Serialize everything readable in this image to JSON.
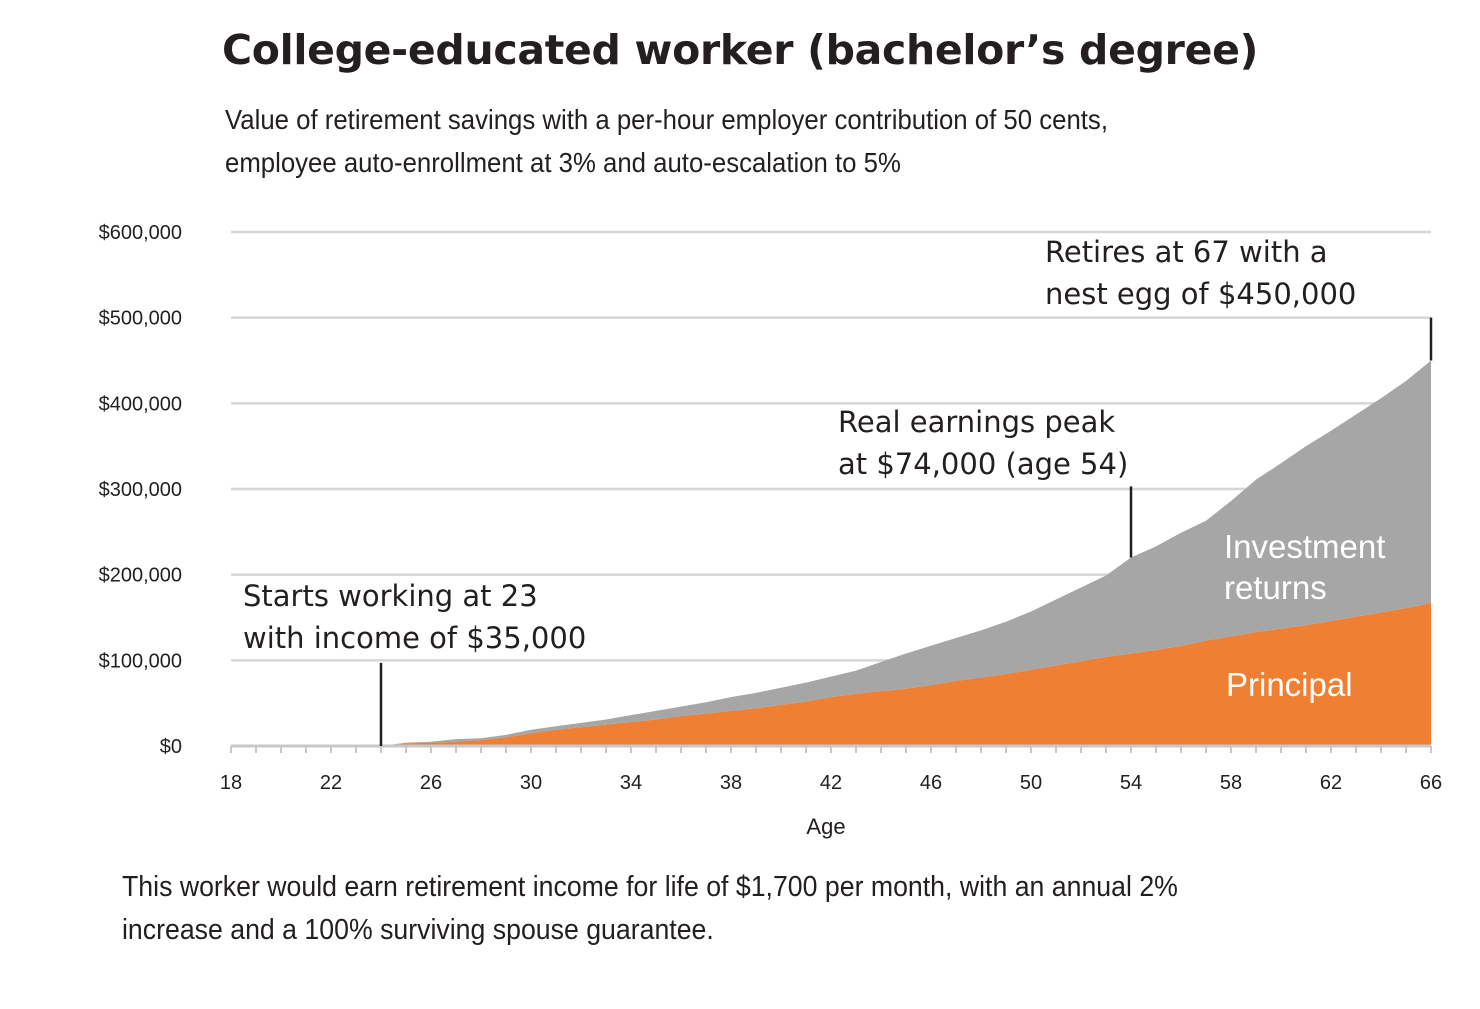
{
  "header": {
    "title": "College-educated worker (bachelor’s degree)",
    "subtitle_lines": [
      "Value of retirement savings with a per-hour employer contribution of 50 cents,",
      "employee auto-enrollment at 3% and auto-escalation to 5%"
    ]
  },
  "footnote_lines": [
    "This worker would earn retirement income for life of $1,700 per month, with an annual 2%",
    "increase and a 100% surviving spouse guarantee."
  ],
  "chart_data": {
    "type": "area",
    "stacked": true,
    "xlabel": "Age",
    "ylabel": "",
    "xlim": [
      18,
      66
    ],
    "ylim": [
      0,
      600000
    ],
    "x_ticks": [
      18,
      22,
      26,
      30,
      34,
      38,
      42,
      46,
      50,
      54,
      58,
      62,
      66
    ],
    "y_ticks": [
      {
        "value": 0,
        "label": "$0"
      },
      {
        "value": 100000,
        "label": "$100,000"
      },
      {
        "value": 200000,
        "label": "$200,000"
      },
      {
        "value": 300000,
        "label": "$300,000"
      },
      {
        "value": 400000,
        "label": "$400,000"
      },
      {
        "value": 500000,
        "label": "$500,000"
      },
      {
        "value": 600000,
        "label": "$600,000"
      }
    ],
    "grid": true,
    "x": [
      24,
      25,
      26,
      27,
      28,
      29,
      30,
      31,
      32,
      33,
      34,
      35,
      36,
      37,
      38,
      39,
      40,
      41,
      42,
      43,
      44,
      45,
      46,
      47,
      48,
      49,
      50,
      51,
      52,
      53,
      54,
      55,
      56,
      57,
      58,
      59,
      60,
      61,
      62,
      63,
      64,
      65,
      66
    ],
    "series": [
      {
        "name": "Principal",
        "color": "#ee7f33",
        "values": [
          0,
          3000,
          4000,
          5000,
          7000,
          10000,
          15000,
          19000,
          22000,
          25000,
          28000,
          31000,
          35000,
          38000,
          41000,
          44000,
          48000,
          52000,
          57000,
          61000,
          64000,
          67000,
          71000,
          76000,
          80000,
          84000,
          89000,
          94000,
          99000,
          104000,
          108000,
          112000,
          117000,
          123000,
          128000,
          133000,
          137000,
          141000,
          146000,
          151000,
          156000,
          161000,
          167000
        ]
      },
      {
        "name": "Investment returns",
        "color": "#a6a6a6",
        "values": [
          0,
          1000,
          1000,
          3000,
          2000,
          3000,
          4000,
          4000,
          5000,
          6000,
          8000,
          10000,
          11000,
          13000,
          16000,
          18000,
          20000,
          22000,
          24000,
          27000,
          34000,
          41000,
          46000,
          50000,
          55000,
          61000,
          68000,
          77000,
          86000,
          95000,
          112000,
          121000,
          132000,
          140000,
          158000,
          178000,
          193000,
          209000,
          222000,
          236000,
          250000,
          265000,
          283000
        ]
      }
    ],
    "annotations": [
      {
        "x": 24,
        "y": 97000,
        "lines": [
          "Starts working at 23",
          "with income of $35,000"
        ]
      },
      {
        "x": 54,
        "y": 303000,
        "lines": [
          "Real earnings peak",
          "at $74,000 (age 54)"
        ]
      },
      {
        "x": 66,
        "y": 500000,
        "lines": [
          "Retires at 67 with a",
          "nest egg of $450,000"
        ]
      }
    ]
  }
}
